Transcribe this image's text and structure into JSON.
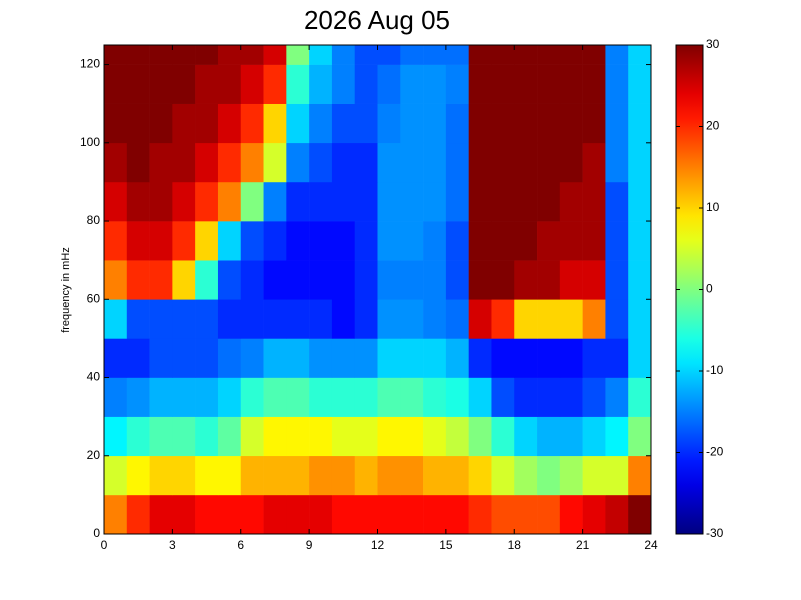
{
  "chart_data": {
    "type": "heatmap",
    "title": "2026 Aug 05",
    "y_label": "frequency in mHz",
    "x_bins": [
      0,
      1,
      2,
      3,
      4,
      5,
      6,
      7,
      8,
      9,
      10,
      11,
      12,
      13,
      14,
      15,
      16,
      17,
      18,
      19,
      20,
      21,
      22,
      23,
      24
    ],
    "y_bins": [
      0,
      10,
      20,
      30,
      40,
      50,
      60,
      70,
      80,
      90,
      100,
      110,
      120,
      125
    ],
    "values": [
      [
        15,
        20,
        24,
        24,
        22,
        22,
        22,
        24,
        24,
        24,
        22,
        22,
        22,
        22,
        22,
        22,
        20,
        18,
        18,
        18,
        22,
        24,
        26,
        30
      ],
      [
        5,
        8,
        10,
        10,
        8,
        8,
        12,
        12,
        12,
        14,
        14,
        12,
        14,
        14,
        12,
        12,
        10,
        5,
        2,
        0,
        2,
        5,
        5,
        15
      ],
      [
        -8,
        -5,
        -3,
        -3,
        -5,
        -2,
        5,
        8,
        8,
        8,
        6,
        6,
        8,
        8,
        6,
        4,
        0,
        -5,
        -10,
        -12,
        -12,
        -10,
        -8,
        0
      ],
      [
        -15,
        -14,
        -12,
        -12,
        -12,
        -10,
        -5,
        -3,
        -3,
        -5,
        -5,
        -5,
        -3,
        -3,
        -5,
        -6,
        -10,
        -18,
        -20,
        -20,
        -20,
        -18,
        -15,
        -5
      ],
      [
        -20,
        -20,
        -18,
        -18,
        -18,
        -16,
        -15,
        -12,
        -12,
        -14,
        -14,
        -14,
        -10,
        -10,
        -10,
        -12,
        -20,
        -22,
        -22,
        -22,
        -22,
        -20,
        -20,
        -10
      ],
      [
        -10,
        -18,
        -18,
        -18,
        -18,
        -20,
        -20,
        -20,
        -20,
        -20,
        -22,
        -20,
        -14,
        -14,
        -15,
        -16,
        25,
        20,
        10,
        10,
        10,
        15,
        -18,
        -10
      ],
      [
        15,
        20,
        20,
        10,
        -5,
        -18,
        -20,
        -22,
        -22,
        -22,
        -22,
        -20,
        -15,
        -15,
        -15,
        -18,
        30,
        30,
        28,
        28,
        25,
        25,
        -18,
        -10
      ],
      [
        20,
        25,
        25,
        20,
        10,
        -10,
        -18,
        -20,
        -22,
        -22,
        -22,
        -20,
        -14,
        -14,
        -15,
        -18,
        30,
        30,
        30,
        28,
        28,
        28,
        -18,
        -10
      ],
      [
        25,
        28,
        28,
        25,
        20,
        15,
        0,
        -15,
        -20,
        -20,
        -20,
        -20,
        -14,
        -14,
        -14,
        -16,
        30,
        30,
        30,
        30,
        28,
        28,
        -18,
        -10
      ],
      [
        28,
        30,
        28,
        28,
        25,
        20,
        15,
        5,
        -15,
        -18,
        -20,
        -20,
        -14,
        -14,
        -14,
        -16,
        30,
        30,
        30,
        30,
        30,
        28,
        -15,
        -10
      ],
      [
        30,
        30,
        30,
        28,
        28,
        25,
        20,
        10,
        -10,
        -15,
        -18,
        -18,
        -15,
        -14,
        -14,
        -16,
        30,
        30,
        30,
        30,
        30,
        30,
        -15,
        -10
      ],
      [
        30,
        30,
        30,
        30,
        28,
        28,
        25,
        20,
        -5,
        -12,
        -15,
        -18,
        -16,
        -14,
        -14,
        -15,
        30,
        30,
        30,
        30,
        30,
        30,
        -15,
        -10
      ],
      [
        30,
        30,
        30,
        30,
        30,
        28,
        28,
        25,
        0,
        -10,
        -15,
        -18,
        -18,
        -16,
        -16,
        -16,
        30,
        30,
        30,
        30,
        30,
        30,
        -15,
        -10
      ]
    ],
    "colormap": "jet",
    "xlim": [
      0,
      24
    ],
    "xticks": [
      0,
      3,
      6,
      9,
      12,
      15,
      18,
      21,
      24
    ],
    "ylim": [
      0,
      125
    ],
    "yticks": [
      0,
      20,
      40,
      60,
      80,
      100,
      120
    ],
    "clim": [
      -30,
      30
    ],
    "cticks": [
      -30,
      -20,
      -10,
      0,
      10,
      20,
      30
    ]
  }
}
